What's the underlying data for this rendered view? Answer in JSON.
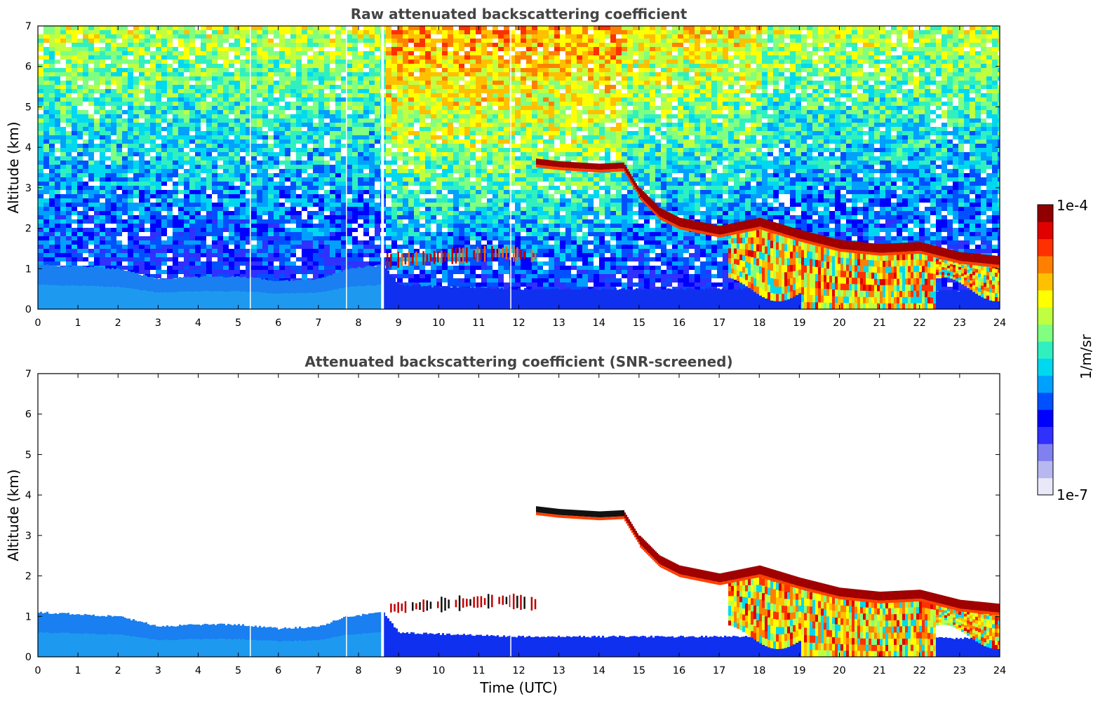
{
  "chart_data": [
    {
      "type": "heatmap",
      "title": "Raw attenuated backscattering coefficient",
      "xlabel": "",
      "ylabel": "Altitude (km)",
      "xlim": [
        0,
        24
      ],
      "ylim": [
        0,
        7
      ],
      "x_ticks": [
        "0",
        "1",
        "2",
        "3",
        "4",
        "5",
        "6",
        "7",
        "8",
        "9",
        "10",
        "11",
        "12",
        "13",
        "14",
        "15",
        "16",
        "17",
        "18",
        "19",
        "20",
        "21",
        "22",
        "23",
        "24"
      ],
      "y_ticks": [
        "0",
        "1",
        "2",
        "3",
        "4",
        "5",
        "6",
        "7"
      ],
      "data_gaps_hours": [
        5.3,
        7.7,
        8.6,
        11.8
      ],
      "features": {
        "noise_background": "high-altitude noise, increasing above 1 km; strongest 8.6-14 UTC",
        "boundary_layer_top_km": [
          [
            0,
            1.1
          ],
          [
            2,
            1.0
          ],
          [
            3,
            0.75
          ],
          [
            4,
            0.8
          ],
          [
            5,
            0.8
          ],
          [
            6,
            0.7
          ],
          [
            7,
            0.75
          ],
          [
            7.7,
            1.0
          ],
          [
            8.6,
            1.1
          ],
          [
            9,
            0.6
          ],
          [
            12,
            0.5
          ],
          [
            17,
            0.5
          ],
          [
            19,
            0.5
          ],
          [
            24,
            0.45
          ]
        ],
        "elevated_cloud_km": [
          [
            12.4,
            3.65
          ],
          [
            13,
            3.58
          ],
          [
            14,
            3.52
          ],
          [
            14.6,
            3.55
          ],
          [
            15,
            2.9
          ],
          [
            15.5,
            2.4
          ],
          [
            16,
            2.15
          ],
          [
            17,
            1.95
          ],
          [
            18,
            2.15
          ],
          [
            19,
            1.85
          ],
          [
            20,
            1.6
          ],
          [
            21,
            1.5
          ],
          [
            22,
            1.55
          ],
          [
            23,
            1.3
          ],
          [
            24,
            1.2
          ]
        ],
        "low_cloud_km": [
          [
            8.7,
            1.2
          ],
          [
            11.6,
            1.4
          ],
          [
            12.4,
            1.3
          ]
        ],
        "precipitation_hours": [
          [
            17.2,
            24
          ]
        ]
      }
    },
    {
      "type": "heatmap",
      "title": "Attenuated backscattering coefficient (SNR-screened)",
      "xlabel": "Time (UTC)",
      "ylabel": "Altitude (km)",
      "xlim": [
        0,
        24
      ],
      "ylim": [
        0,
        7
      ],
      "x_ticks": [
        "0",
        "1",
        "2",
        "3",
        "4",
        "5",
        "6",
        "7",
        "8",
        "9",
        "10",
        "11",
        "12",
        "13",
        "14",
        "15",
        "16",
        "17",
        "18",
        "19",
        "20",
        "21",
        "22",
        "23",
        "24"
      ],
      "y_ticks": [
        "0",
        "1",
        "2",
        "3",
        "4",
        "5",
        "6",
        "7"
      ],
      "data_gaps_hours": [
        5.3,
        7.7,
        8.6,
        11.8
      ],
      "features": {
        "noise_background": "screened (white)",
        "boundary_layer_top_km": [
          [
            0,
            1.1
          ],
          [
            2,
            1.0
          ],
          [
            3,
            0.75
          ],
          [
            4,
            0.8
          ],
          [
            5,
            0.8
          ],
          [
            6,
            0.7
          ],
          [
            7,
            0.75
          ],
          [
            7.7,
            1.0
          ],
          [
            8.6,
            1.1
          ],
          [
            9,
            0.6
          ],
          [
            12,
            0.5
          ],
          [
            17,
            0.5
          ],
          [
            19,
            0.5
          ],
          [
            24,
            0.45
          ]
        ],
        "elevated_cloud_km": [
          [
            12.4,
            3.65
          ],
          [
            13,
            3.58
          ],
          [
            14,
            3.52
          ],
          [
            14.6,
            3.55
          ],
          [
            15,
            2.9
          ],
          [
            15.5,
            2.4
          ],
          [
            16,
            2.15
          ],
          [
            17,
            1.95
          ],
          [
            18,
            2.15
          ],
          [
            19,
            1.85
          ],
          [
            20,
            1.6
          ],
          [
            21,
            1.5
          ],
          [
            22,
            1.55
          ],
          [
            23,
            1.3
          ],
          [
            24,
            1.2
          ]
        ],
        "low_cloud_km": [
          [
            8.7,
            1.2
          ],
          [
            11.6,
            1.4
          ],
          [
            12.4,
            1.3
          ]
        ],
        "precipitation_hours": [
          [
            17.2,
            24
          ]
        ]
      }
    }
  ],
  "colorbar": {
    "min_label": "1e-7",
    "max_label": "1e-4",
    "label": "1/m/sr",
    "scale": "log",
    "colors": [
      "#e8e8f8",
      "#b8b8f0",
      "#8080f0",
      "#3030ff",
      "#0000ff",
      "#0050ff",
      "#00a0ff",
      "#00d8f0",
      "#30f0c0",
      "#80ff80",
      "#c0ff40",
      "#ffff00",
      "#ffc000",
      "#ff8000",
      "#ff3000",
      "#e00000",
      "#900000"
    ]
  }
}
